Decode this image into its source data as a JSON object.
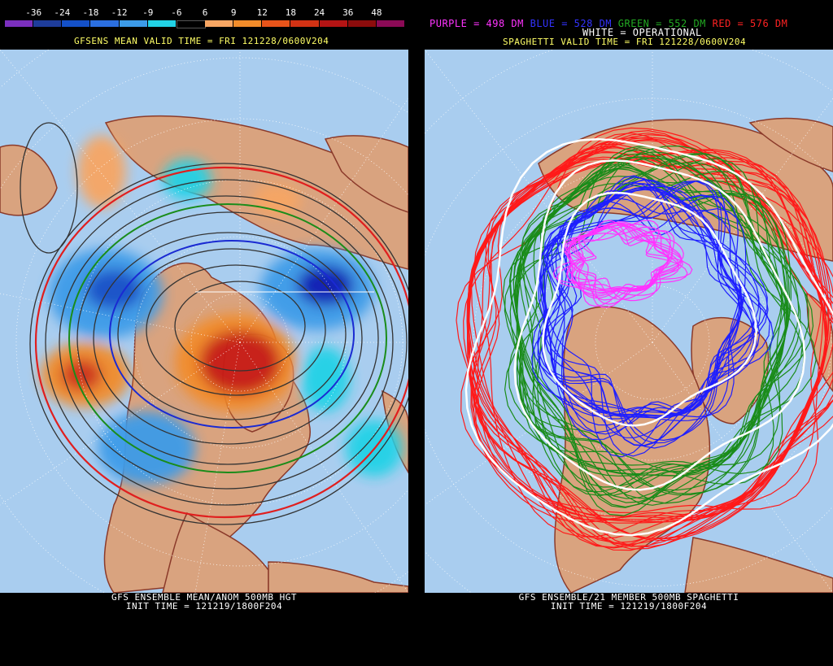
{
  "left_panel": {
    "colorbar": {
      "ticks": [
        "-36",
        "-24",
        "-18",
        "-12",
        "-9",
        "-6",
        "6",
        "9",
        "12",
        "18",
        "24",
        "36",
        "48"
      ],
      "colors": [
        "#7b2fbe",
        "#1e3c9a",
        "#1450c8",
        "#2b6fe0",
        "#3c9be8",
        "#22d2e6",
        "#000000",
        "#f7a663",
        "#f28c2a",
        "#e8541a",
        "#d23214",
        "#b41414",
        "#8c0c0c",
        "#8b0a56"
      ]
    },
    "valid_time": "GFSENS MEAN VALID TIME = FRI 121228/0600V204",
    "footer_line1": "GFS ENSEMBLE MEAN/ANOM 500MB HGT",
    "footer_line2": "INIT TIME = 121219/1800F204"
  },
  "right_panel": {
    "legend": [
      {
        "text": "PURPLE = 498 DM",
        "color": "#ff33ff"
      },
      {
        "text": "BLUE = 528 DM",
        "color": "#3333ff"
      },
      {
        "text": "GREEN = 552 DM",
        "color": "#22aa22"
      },
      {
        "text": "RED = 576 DM",
        "color": "#ff2222"
      }
    ],
    "operational": "WHITE = OPERATIONAL",
    "valid_time": "SPAGHETTI VALID TIME = FRI 121228/0600V204",
    "footer_line1": "GFS ENSEMBLE/21 MEMBER 500MB SPAGHETTI",
    "footer_line2": "INIT TIME = 121219/1800F204"
  },
  "map_colors": {
    "ocean": "#a9cdef",
    "land": "#d9a37f",
    "coast": "#8b3a2a",
    "grid": "#ffffff"
  }
}
